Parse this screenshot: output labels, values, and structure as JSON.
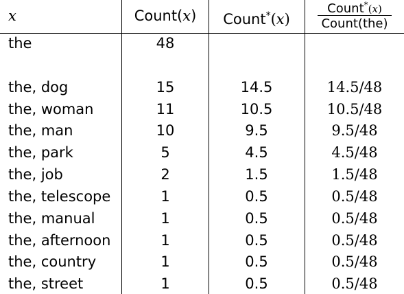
{
  "header": {
    "col1": "x",
    "col2_prefix": "Count(",
    "col2_var": "x",
    "col2_suffix": ")",
    "col3_prefix": "Count",
    "col3_star": "*",
    "col3_open": "(",
    "col3_var": "x",
    "col3_close": ")",
    "col4_num_prefix": "Count",
    "col4_num_star": "*",
    "col4_num_open": "(",
    "col4_num_var": "x",
    "col4_num_close": ")",
    "col4_den": "Count(the)"
  },
  "rows": [
    {
      "x": "the",
      "count": "48",
      "count_star": "",
      "ratio": ""
    },
    {
      "x": "the, dog",
      "count": "15",
      "count_star": "14.5",
      "ratio": "14.5/48"
    },
    {
      "x": "the, woman",
      "count": "11",
      "count_star": "10.5",
      "ratio": "10.5/48"
    },
    {
      "x": "the, man",
      "count": "10",
      "count_star": "9.5",
      "ratio": "9.5/48"
    },
    {
      "x": "the, park",
      "count": "5",
      "count_star": "4.5",
      "ratio": "4.5/48"
    },
    {
      "x": "the, job",
      "count": "2",
      "count_star": "1.5",
      "ratio": "1.5/48"
    },
    {
      "x": "the, telescope",
      "count": "1",
      "count_star": "0.5",
      "ratio": "0.5/48"
    },
    {
      "x": "the, manual",
      "count": "1",
      "count_star": "0.5",
      "ratio": "0.5/48"
    },
    {
      "x": "the, afternoon",
      "count": "1",
      "count_star": "0.5",
      "ratio": "0.5/48"
    },
    {
      "x": "the, country",
      "count": "1",
      "count_star": "0.5",
      "ratio": "0.5/48"
    },
    {
      "x": "the, street",
      "count": "1",
      "count_star": "0.5",
      "ratio": "0.5/48"
    }
  ]
}
